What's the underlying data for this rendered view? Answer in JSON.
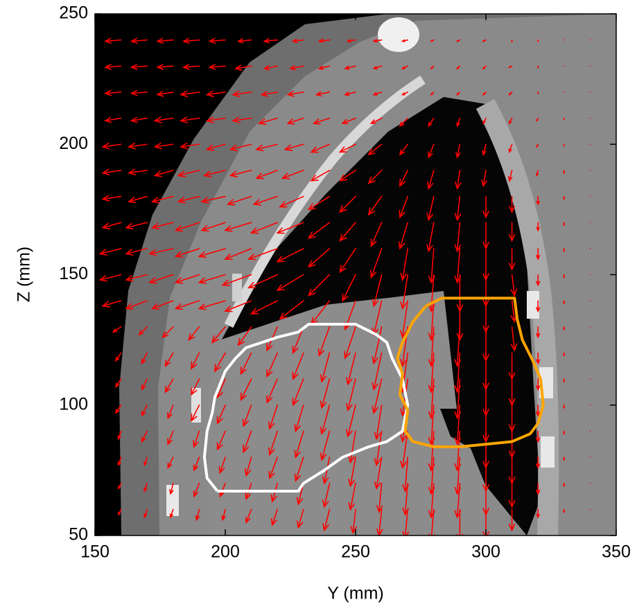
{
  "chart_data": {
    "type": "quiver",
    "xlabel": "Y (mm)",
    "ylabel": "Z (mm)",
    "xlim": [
      150,
      350
    ],
    "ylim": [
      50,
      250
    ],
    "xticks": [
      150,
      200,
      250,
      300,
      350
    ],
    "yticks": [
      50,
      100,
      150,
      200,
      250
    ],
    "arrow_color": "#ff0000",
    "x": [
      160,
      170,
      180,
      190,
      200,
      210,
      220,
      230,
      240,
      250,
      260,
      270,
      280,
      290,
      300,
      310,
      320,
      330,
      340
    ],
    "y": [
      240,
      230,
      220,
      210,
      200,
      190,
      180,
      170,
      160,
      150,
      140,
      130,
      120,
      110,
      100,
      90,
      80,
      70,
      60
    ],
    "u": [
      [
        -6,
        -6,
        -6,
        -6,
        -6,
        -5,
        -5,
        -4,
        -4,
        -3,
        -3,
        -2,
        -1,
        -1,
        -1,
        0,
        0,
        0,
        0
      ],
      [
        -6,
        -6,
        -6,
        -6,
        -6,
        -6,
        -5,
        -5,
        -4,
        -4,
        -3,
        -2,
        -1,
        -1,
        -1,
        -1,
        0,
        0,
        0
      ],
      [
        -6,
        -6,
        -6,
        -7,
        -7,
        -7,
        -6,
        -6,
        -5,
        -4,
        -3,
        -2,
        -1,
        -1,
        -1,
        -1,
        0,
        0,
        0
      ],
      [
        -6,
        -6,
        -7,
        -7,
        -7,
        -7,
        -7,
        -6,
        -6,
        -5,
        -4,
        -3,
        -2,
        -1,
        -1,
        -1,
        -0.5,
        0,
        0
      ],
      [
        -7,
        -7,
        -7,
        -7,
        -7,
        -8,
        -8,
        -7,
        -7,
        -6,
        -5,
        -3,
        -2,
        -1,
        -1,
        -1,
        -0.5,
        0,
        0
      ],
      [
        -7,
        -7,
        -7,
        -8,
        -8,
        -8,
        -8,
        -8,
        -7,
        -6,
        -5,
        -3,
        -2,
        -1,
        -1,
        -1,
        -0.5,
        0,
        0
      ],
      [
        -7,
        -7,
        -8,
        -8,
        -9,
        -9,
        -9,
        -9,
        -8,
        -6,
        -5,
        -3,
        -2,
        -1,
        0,
        0,
        0,
        0,
        0
      ],
      [
        -7,
        -8,
        -8,
        -9,
        -9,
        -10,
        -10,
        -10,
        -8,
        -6,
        -4,
        -3,
        -2,
        -1,
        0,
        0,
        0,
        0,
        0
      ],
      [
        -8,
        -8,
        -9,
        -9,
        -10,
        -10,
        -11,
        -10,
        -8,
        -6,
        -4,
        -2,
        -1,
        -1,
        0,
        0,
        0,
        0,
        0
      ],
      [
        -8,
        -8,
        -9,
        -9,
        -10,
        -11,
        -11,
        -10,
        -8,
        -5,
        -3,
        -2,
        -1,
        0,
        0,
        1,
        0,
        0,
        0
      ],
      [
        -7,
        -8,
        -8,
        -9,
        -10,
        -10,
        -10,
        -9,
        -7,
        -4,
        -3,
        -2,
        -1,
        0,
        0,
        1,
        0,
        0,
        0
      ],
      [
        -3,
        -3,
        -4,
        -4,
        -5,
        -5,
        -4,
        -4,
        -4,
        -4,
        -3,
        -2,
        -1,
        -1,
        0,
        1,
        0,
        0,
        0
      ],
      [
        -2,
        -2,
        -3,
        -3,
        -4,
        -4,
        -4,
        -4,
        -3,
        -3,
        -3,
        -2,
        -1,
        -1,
        0,
        0,
        0,
        0,
        0
      ],
      [
        -2,
        -2,
        -3,
        -3,
        -3,
        -4,
        -4,
        -4,
        -3,
        -3,
        -3,
        -2,
        -1,
        -1,
        0,
        0,
        0,
        0,
        0
      ],
      [
        -2,
        -2,
        -2,
        -3,
        -3,
        -3,
        -3,
        -3,
        -3,
        -3,
        -2,
        -2,
        -1,
        -1,
        0,
        0,
        0,
        0,
        0
      ],
      [
        -1,
        -2,
        -2,
        -2,
        -3,
        -3,
        -3,
        -3,
        -3,
        -2,
        -2,
        -2,
        -1,
        -1,
        0,
        0,
        0,
        0,
        0
      ],
      [
        -1,
        -1,
        -2,
        -2,
        -2,
        -2,
        -3,
        -3,
        -2,
        -2,
        -2,
        -1,
        -1,
        -1,
        0,
        0,
        0,
        0,
        0
      ],
      [
        -1,
        -1,
        -1,
        -2,
        -2,
        -2,
        -2,
        -2,
        -2,
        -2,
        -1,
        -1,
        -1,
        -1,
        0,
        0,
        0,
        0,
        0
      ],
      [
        -1,
        -1,
        -1,
        -1,
        -1,
        -2,
        -2,
        -2,
        -2,
        -1,
        -1,
        -1,
        -1,
        0,
        0,
        0,
        0,
        0,
        0
      ]
    ],
    "v": [
      [
        -0.5,
        -0.5,
        -0.5,
        -0.5,
        -0.5,
        -0.5,
        -0.5,
        -0.5,
        -0.5,
        -0.5,
        -0.5,
        -0.5,
        -0.5,
        -0.5,
        -0.5,
        -0.5,
        -0.5,
        0,
        0
      ],
      [
        -0.5,
        -0.5,
        -0.5,
        -0.5,
        -0.5,
        -1,
        -1,
        -1,
        -1,
        -1,
        -1,
        -1,
        -1,
        -1,
        -1,
        -0.5,
        -0.5,
        0,
        0
      ],
      [
        -0.5,
        -0.5,
        -1,
        -1,
        -1,
        -1,
        -1,
        -1,
        -1,
        -1,
        -1,
        -1,
        -1,
        -1,
        -1,
        -1,
        -0.5,
        0,
        0
      ],
      [
        -1,
        -1,
        -1,
        -1,
        -1,
        -1,
        -2,
        -2,
        -2,
        -2,
        -2,
        -3,
        -3,
        -3,
        -2,
        -2,
        -1,
        -0.5,
        0
      ],
      [
        -1,
        -1,
        -1,
        -1,
        -2,
        -2,
        -2,
        -2,
        -3,
        -3,
        -4,
        -4,
        -5,
        -5,
        -4,
        -3,
        -1,
        -0.5,
        0
      ],
      [
        -1,
        -1,
        -2,
        -2,
        -2,
        -2,
        -3,
        -3,
        -4,
        -4,
        -5,
        -6,
        -7,
        -7,
        -6,
        -4,
        -2,
        -1,
        0
      ],
      [
        -1,
        -2,
        -2,
        -2,
        -2,
        -3,
        -3,
        -4,
        -5,
        -6,
        -7,
        -8,
        -9,
        -9,
        -8,
        -6,
        -3,
        -1,
        0
      ],
      [
        -2,
        -2,
        -2,
        -3,
        -3,
        -3,
        -4,
        -4,
        -6,
        -7,
        -9,
        -10,
        -11,
        -11,
        -10,
        -7,
        -3,
        -1,
        0
      ],
      [
        -2,
        -2,
        -2,
        -3,
        -3,
        -4,
        -4,
        -5,
        -7,
        -9,
        -11,
        -12,
        -13,
        -13,
        -12,
        -8,
        -4,
        -1,
        0
      ],
      [
        -2,
        -2,
        -3,
        -3,
        -3,
        -4,
        -5,
        -6,
        -8,
        -10,
        -12,
        -13,
        -14,
        -14,
        -12,
        -8,
        -4,
        -1,
        0
      ],
      [
        -2,
        -3,
        -3,
        -3,
        -3,
        -4,
        -5,
        -7,
        -9,
        -11,
        -13,
        -14,
        -15,
        -15,
        -12,
        -8,
        -4,
        -1,
        0
      ],
      [
        -2,
        -3,
        -4,
        -5,
        -6,
        -7,
        -9,
        -10,
        -11,
        -12,
        -14,
        -15,
        -15,
        -15,
        -13,
        -9,
        -4,
        -1,
        0
      ],
      [
        -3,
        -4,
        -5,
        -6,
        -7,
        -8,
        -9,
        -10,
        -11,
        -12,
        -14,
        -15,
        -15,
        -15,
        -14,
        -10,
        -4,
        -1,
        0
      ],
      [
        -3,
        -4,
        -5,
        -6,
        -7,
        -8,
        -9,
        -10,
        -11,
        -12,
        -13,
        -14,
        -15,
        -15,
        -14,
        -10,
        -4,
        -1,
        0
      ],
      [
        -3,
        -4,
        -5,
        -6,
        -7,
        -8,
        -9,
        -10,
        -11,
        -12,
        -13,
        -14,
        -15,
        -15,
        -14,
        -10,
        -4,
        -1,
        0
      ],
      [
        -3,
        -4,
        -5,
        -6,
        -7,
        -8,
        -9,
        -10,
        -11,
        -12,
        -13,
        -14,
        -15,
        -15,
        -14,
        -10,
        -4,
        -1,
        0
      ],
      [
        -3,
        -3,
        -4,
        -5,
        -6,
        -7,
        -8,
        -9,
        -10,
        -11,
        -12,
        -13,
        -14,
        -14,
        -13,
        -10,
        -4,
        -1,
        0
      ],
      [
        -2,
        -3,
        -4,
        -5,
        -5,
        -6,
        -7,
        -8,
        -9,
        -10,
        -11,
        -12,
        -13,
        -13,
        -12,
        -9,
        -4,
        -1,
        0
      ],
      [
        -2,
        -3,
        -3,
        -4,
        -4,
        -5,
        -6,
        -7,
        -8,
        -9,
        -10,
        -11,
        -12,
        -12,
        -11,
        -8,
        -3,
        -1,
        0
      ]
    ],
    "contours": [
      {
        "color": "#ffffff",
        "x": [
          197,
          228,
          230,
          238,
          245,
          255,
          262,
          268,
          270,
          268,
          264,
          262,
          258,
          250,
          232,
          228,
          220,
          214,
          208,
          204,
          200,
          198,
          196,
          195,
          193,
          192,
          193,
          197
        ],
        "y": [
          67,
          67,
          70,
          75,
          80,
          84,
          86,
          90,
          100,
          110,
          118,
          124,
          127,
          131,
          131,
          128,
          126,
          124,
          122,
          118,
          113,
          108,
          103,
          97,
          90,
          80,
          72,
          67
        ]
      },
      {
        "color": "#ffa500",
        "x": [
          277,
          283,
          287,
          311,
          312,
          314,
          318,
          321,
          322,
          320,
          317,
          310,
          300,
          290,
          280,
          272,
          269,
          270,
          267,
          268,
          266,
          268,
          272,
          277
        ],
        "y": [
          138,
          141,
          141,
          141,
          133,
          125,
          117,
          110,
          100,
          93,
          89,
          86,
          85,
          84,
          84,
          86,
          90,
          98,
          104,
          112,
          118,
          124,
          132,
          138
        ]
      }
    ]
  }
}
